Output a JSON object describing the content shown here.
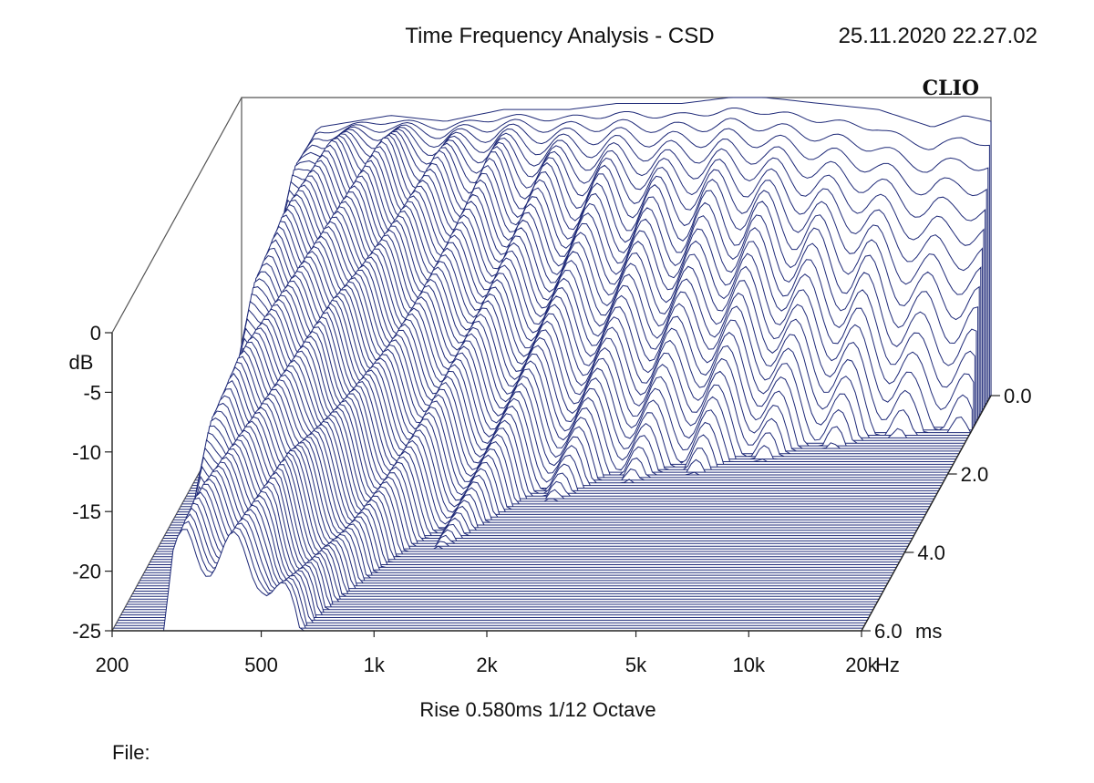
{
  "header": {
    "title": "Time Frequency Analysis - CSD",
    "timestamp": "25.11.2020 22.27.02",
    "brand": "CLIO"
  },
  "footer": {
    "settings": "Rise 0.580ms   1/12 Octave",
    "file_label": "File:"
  },
  "chart_data": {
    "type": "waterfall",
    "title": "Time Frequency Analysis - CSD",
    "y_unit": "dB",
    "y_ticks": [
      "0",
      "-5",
      "-10",
      "-15",
      "-20",
      "-25"
    ],
    "ylim": [
      -25,
      0
    ],
    "x_ticks": [
      {
        "label": "200",
        "value": 200
      },
      {
        "label": "500",
        "value": 500
      },
      {
        "label": "1k",
        "value": 1000
      },
      {
        "label": "2k",
        "value": 2000
      },
      {
        "label": "5k",
        "value": 5000
      },
      {
        "label": "10k",
        "value": 10000
      },
      {
        "label": "20k",
        "value": 20000
      }
    ],
    "x_unit": "Hz",
    "x_scale": "log",
    "xlim": [
      200,
      20000
    ],
    "z_ticks": [
      {
        "label": "0.0",
        "value": 0.0
      },
      {
        "label": "2.0",
        "value": 2.0
      },
      {
        "label": "4.0",
        "value": 4.0
      },
      {
        "label": "6.0",
        "value": 6.0
      }
    ],
    "z_unit": "ms",
    "zlim": [
      0,
      6
    ],
    "line_color": "#1f2a78",
    "reference_response_db": [
      {
        "f": 200,
        "db": -30
      },
      {
        "f": 240,
        "db": -22
      },
      {
        "f": 270,
        "db": -12
      },
      {
        "f": 290,
        "db": -5
      },
      {
        "f": 320,
        "db": -2.5
      },
      {
        "f": 400,
        "db": -2
      },
      {
        "f": 500,
        "db": -1.5
      },
      {
        "f": 700,
        "db": -2
      },
      {
        "f": 1000,
        "db": -1
      },
      {
        "f": 1500,
        "db": -1
      },
      {
        "f": 2000,
        "db": -0.5
      },
      {
        "f": 3000,
        "db": -0.5
      },
      {
        "f": 4000,
        "db": 0
      },
      {
        "f": 5000,
        "db": 0
      },
      {
        "f": 7000,
        "db": -0.5
      },
      {
        "f": 10000,
        "db": -1
      },
      {
        "f": 14000,
        "db": -2.5
      },
      {
        "f": 17000,
        "db": -1.5
      },
      {
        "f": 20000,
        "db": -2
      }
    ],
    "decay_db_per_ms": [
      {
        "f": 200,
        "rate": 2
      },
      {
        "f": 300,
        "rate": 2.5
      },
      {
        "f": 500,
        "rate": 3
      },
      {
        "f": 650,
        "rate": 4
      },
      {
        "f": 800,
        "rate": 5
      },
      {
        "f": 1000,
        "rate": 6
      },
      {
        "f": 1500,
        "rate": 8
      },
      {
        "f": 2000,
        "rate": 10
      },
      {
        "f": 3000,
        "rate": 12
      },
      {
        "f": 5000,
        "rate": 14
      },
      {
        "f": 10000,
        "rate": 20
      },
      {
        "f": 20000,
        "rate": 26
      }
    ],
    "grid": false
  }
}
